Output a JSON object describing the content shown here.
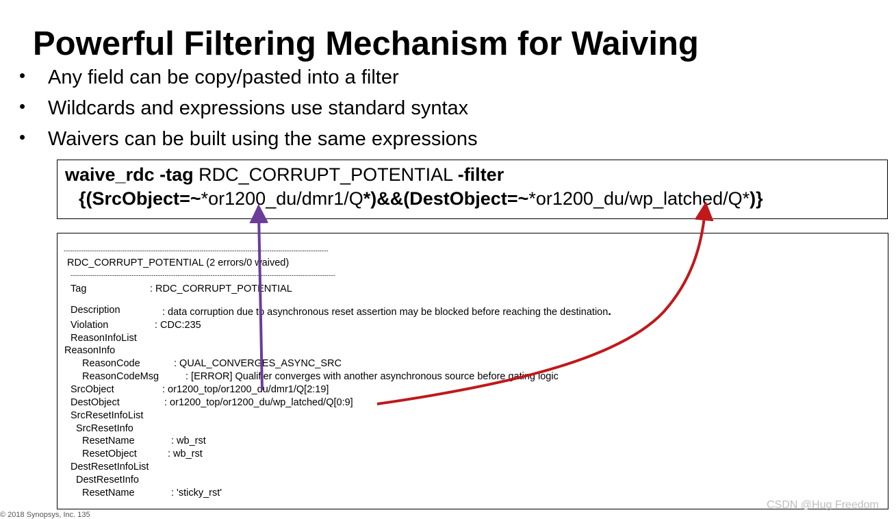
{
  "slide": {
    "title": "Powerful Filtering Mechanism for Waiving",
    "bullet_marker": "•",
    "bullets": [
      "Any field can be copy/pasted into a filter",
      "Wildcards and expressions use standard syntax",
      "Waivers can be built using the same expressions"
    ]
  },
  "command": {
    "line1": {
      "cmd": "waive_rdc",
      "tag_flag": "-tag",
      "tag_value": "RDC_CORRUPT_POTENTIAL",
      "filter_flag": "-filter"
    },
    "line2": {
      "open": "{(",
      "src_field": "SrcObject",
      "op1": "=~",
      "star1": "*",
      "src_pattern": "or1200_du/dmr1/Q",
      "star2": "*",
      "mid": ")&&(",
      "dest_field": "DestObject",
      "op2": "=~",
      "star3": "*",
      "dest_pattern": "or1200_du/wp_latched/Q",
      "star4": "*",
      "close": ")}"
    }
  },
  "report": {
    "dashes": "-------------------------------------------------------------------------------------------------------------------------",
    "header": "RDC_CORRUPT_POTENTIAL  (2 errors/0 waived)",
    "rows": {
      "tag_key": "Tag",
      "tag_val": ": RDC_CORRUPT_POTENTIAL",
      "desc_key": "Description",
      "desc_val": ": data corruption due to asynchronous reset assertion may be blocked before reaching the destination",
      "desc_period": ".",
      "viol_key": "Violation",
      "viol_val": ": CDC:235",
      "reasoninfolist": "ReasonInfoList",
      "reasoninfo": "ReasonInfo",
      "rcode_key": "ReasonCode",
      "rcode_val": ": QUAL_CONVERGES_ASYNC_SRC",
      "rmsg_key": "ReasonCodeMsg",
      "rmsg_val": ": [ERROR] Qualifier converges with another asynchronous source before gating logic",
      "src_key": "SrcObject",
      "src_val": ": or1200_top/or1200_du/dmr1/Q[2:19]",
      "dest_key": "DestObject",
      "dest_val": ": or1200_top/or1200_du/wp_latched/Q[0:9]",
      "srcrstlist": "SrcResetInfoList",
      "srcrstinfo": "SrcResetInfo",
      "rname1_key": "ResetName",
      "rname1_val": ": wb_rst",
      "robj_key": "ResetObject",
      "robj_val": ": wb_rst",
      "destrstlist": "DestResetInfoList",
      "destrstinfo": "DestResetInfo",
      "rname2_key": "ResetName",
      "rname2_val": ": 'sticky_rst'"
    }
  },
  "footer": "© 2018 Synopsys, Inc.   135",
  "watermark": "CSDN @Hug Freedom",
  "colors": {
    "purple_arrow": "#6b3c9a",
    "red_arrow": "#c0191b"
  }
}
